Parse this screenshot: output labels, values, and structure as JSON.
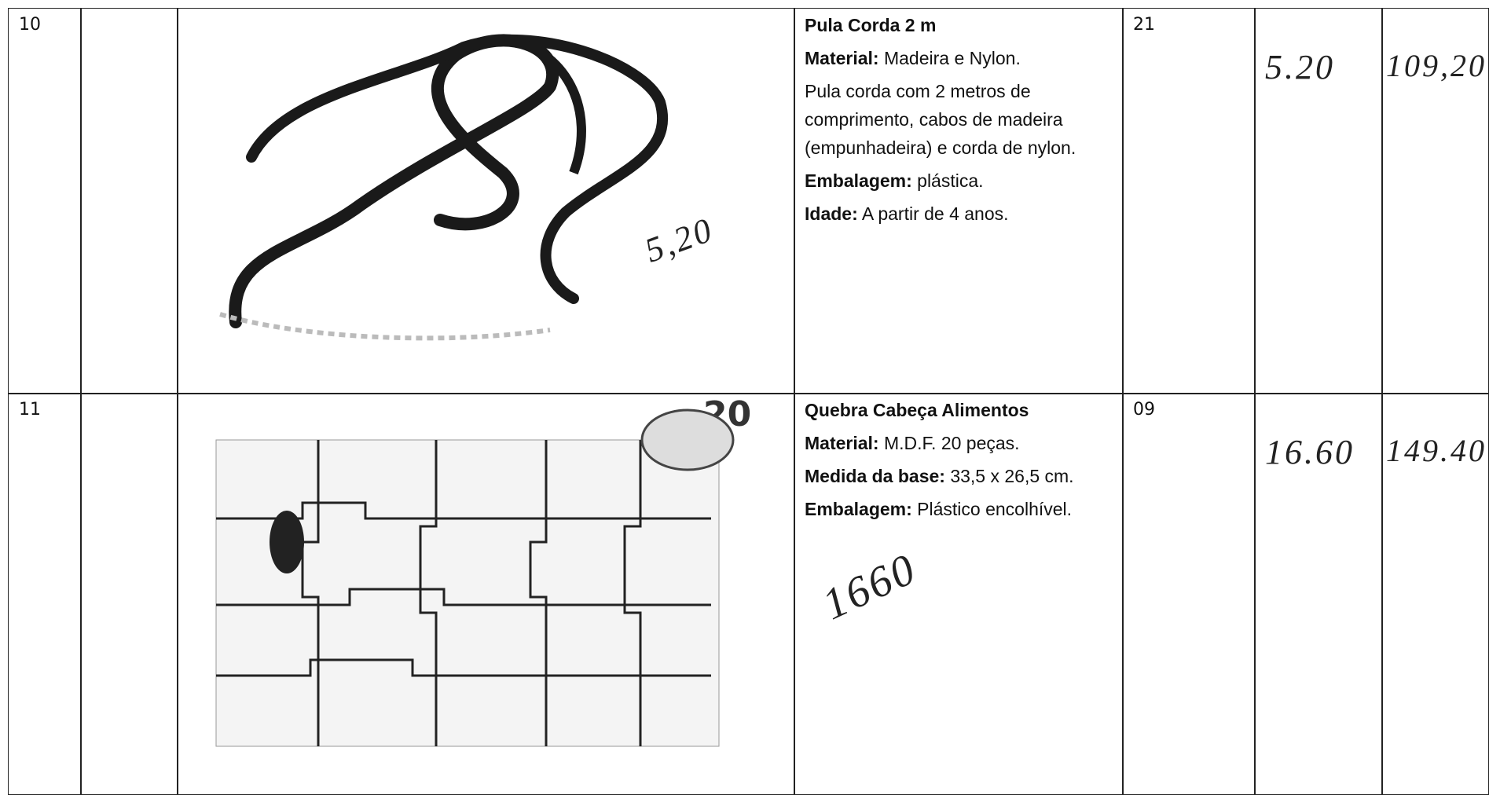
{
  "table": {
    "rows": [
      {
        "item": "10",
        "title": "Pula Corda 2 m",
        "lines": [
          {
            "label": "Material:",
            "text": "Madeira e Nylon."
          },
          {
            "text": "Pula corda com 2 metros de comprimento, cabos de madeira (empunhadeira) e corda de nylon."
          },
          {
            "label": "Embalagem:",
            "text": "plástica."
          },
          {
            "label": "Idade:",
            "text": "A partir de 4 anos."
          }
        ],
        "quantity": "21",
        "unit_price": "5.20",
        "total": "109,20",
        "annotation": "5,20"
      },
      {
        "item": "11",
        "title": "Quebra Cabeça Alimentos",
        "badge": "20",
        "lines": [
          {
            "label": "Material:",
            "text": "M.D.F. 20 peças."
          },
          {
            "label": "Medida da base:",
            "text": "33,5 x 26,5 cm."
          },
          {
            "label": "Embalagem:",
            "text": "Plástico encolhível."
          }
        ],
        "quantity": "09",
        "unit_price": "16.60",
        "total": "149.40",
        "annotation": "1660"
      }
    ]
  }
}
